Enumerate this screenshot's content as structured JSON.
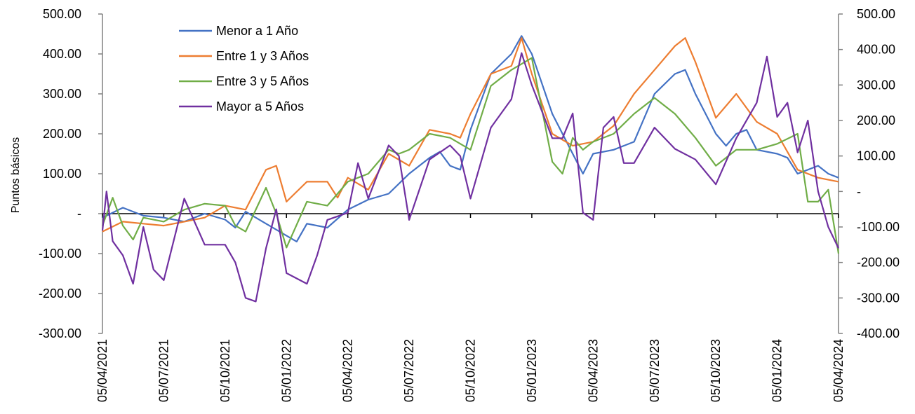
{
  "chart_data": {
    "type": "line",
    "ylabel": "Puntos básicos",
    "ylim_left": [
      -300,
      500
    ],
    "ylim_right": [
      -400,
      500
    ],
    "y_ticks_left": [
      -300,
      -200,
      -100,
      0,
      100,
      200,
      300,
      400,
      500
    ],
    "y_tick_labels_left": [
      "-300.00",
      "-200.00",
      "-100.00",
      "-",
      "100.00",
      "200.00",
      "300.00",
      "400.00",
      "500.00"
    ],
    "y_ticks_right": [
      -400,
      -300,
      -200,
      -100,
      0,
      100,
      200,
      300,
      400,
      500
    ],
    "y_tick_labels_right": [
      "-400.00",
      "-300.00",
      "-200.00",
      "-100.00",
      "-",
      "100.00",
      "200.00",
      "300.00",
      "400.00",
      "500.00"
    ],
    "x_tick_labels": [
      "05/04/2021",
      "05/07/2021",
      "05/10/2021",
      "05/01/2022",
      "05/04/2022",
      "05/07/2022",
      "05/10/2022",
      "05/01/2023",
      "05/04/2023",
      "05/07/2023",
      "05/10/2023",
      "05/01/2024",
      "05/04/2024"
    ],
    "x_range_months": [
      0,
      36
    ],
    "legend_position": "top-left",
    "grid": false,
    "series": [
      {
        "name": "Menor a 1 Año",
        "color": "#4472C4",
        "axis": "left",
        "points": [
          [
            0,
            -10
          ],
          [
            1,
            15
          ],
          [
            2,
            -5
          ],
          [
            3,
            -10
          ],
          [
            4,
            -20
          ],
          [
            5,
            0
          ],
          [
            6,
            -15
          ],
          [
            6.5,
            -35
          ],
          [
            7,
            5
          ],
          [
            8,
            -25
          ],
          [
            9,
            -55
          ],
          [
            9.5,
            -70
          ],
          [
            10,
            -25
          ],
          [
            11,
            -35
          ],
          [
            12,
            10
          ],
          [
            13,
            35
          ],
          [
            14,
            50
          ],
          [
            15,
            100
          ],
          [
            16,
            140
          ],
          [
            16.5,
            155
          ],
          [
            17,
            120
          ],
          [
            17.5,
            110
          ],
          [
            18,
            210
          ],
          [
            19,
            350
          ],
          [
            20,
            400
          ],
          [
            20.5,
            445
          ],
          [
            21,
            400
          ],
          [
            22,
            250
          ],
          [
            23,
            150
          ],
          [
            23.5,
            100
          ],
          [
            24,
            150
          ],
          [
            25,
            160
          ],
          [
            26,
            180
          ],
          [
            27,
            300
          ],
          [
            28,
            350
          ],
          [
            28.5,
            360
          ],
          [
            29,
            300
          ],
          [
            30,
            200
          ],
          [
            30.5,
            170
          ],
          [
            31,
            200
          ],
          [
            31.5,
            210
          ],
          [
            32,
            160
          ],
          [
            33,
            150
          ],
          [
            33.5,
            140
          ],
          [
            34,
            100
          ],
          [
            35,
            120
          ],
          [
            35.5,
            100
          ],
          [
            36,
            90
          ]
        ]
      },
      {
        "name": "Entre 1 y 3 Años",
        "color": "#ED7D31",
        "axis": "left",
        "points": [
          [
            0,
            -45
          ],
          [
            1,
            -20
          ],
          [
            2,
            -25
          ],
          [
            3,
            -30
          ],
          [
            4,
            -20
          ],
          [
            5,
            -10
          ],
          [
            6,
            20
          ],
          [
            7,
            10
          ],
          [
            8,
            110
          ],
          [
            8.5,
            120
          ],
          [
            9,
            30
          ],
          [
            10,
            80
          ],
          [
            11,
            80
          ],
          [
            11.5,
            40
          ],
          [
            12,
            90
          ],
          [
            13,
            60
          ],
          [
            14,
            150
          ],
          [
            15,
            120
          ],
          [
            16,
            210
          ],
          [
            17,
            200
          ],
          [
            17.5,
            190
          ],
          [
            18,
            250
          ],
          [
            19,
            350
          ],
          [
            20,
            370
          ],
          [
            20.5,
            440
          ],
          [
            21,
            350
          ],
          [
            22,
            200
          ],
          [
            23,
            170
          ],
          [
            24,
            180
          ],
          [
            25,
            220
          ],
          [
            26,
            300
          ],
          [
            27,
            360
          ],
          [
            28,
            420
          ],
          [
            28.5,
            440
          ],
          [
            29,
            380
          ],
          [
            30,
            240
          ],
          [
            31,
            300
          ],
          [
            32,
            230
          ],
          [
            33,
            200
          ],
          [
            34,
            110
          ],
          [
            35,
            90
          ],
          [
            36,
            80
          ]
        ]
      },
      {
        "name": "Entre 3 y 5 Años",
        "color": "#70AD47",
        "axis": "left",
        "points": [
          [
            0,
            -30
          ],
          [
            0.5,
            40
          ],
          [
            1,
            -30
          ],
          [
            1.5,
            -65
          ],
          [
            2,
            -10
          ],
          [
            3,
            -20
          ],
          [
            4,
            10
          ],
          [
            5,
            25
          ],
          [
            6,
            20
          ],
          [
            6.5,
            -30
          ],
          [
            7,
            -45
          ],
          [
            8,
            65
          ],
          [
            8.5,
            0
          ],
          [
            9,
            -85
          ],
          [
            10,
            30
          ],
          [
            11,
            20
          ],
          [
            12,
            80
          ],
          [
            13,
            100
          ],
          [
            14,
            160
          ],
          [
            14.5,
            150
          ],
          [
            15,
            160
          ],
          [
            16,
            200
          ],
          [
            17,
            190
          ],
          [
            18,
            160
          ],
          [
            19,
            320
          ],
          [
            20,
            360
          ],
          [
            21,
            390
          ],
          [
            22,
            130
          ],
          [
            22.5,
            100
          ],
          [
            23,
            190
          ],
          [
            23.5,
            160
          ],
          [
            24,
            180
          ],
          [
            25,
            200
          ],
          [
            26,
            250
          ],
          [
            27,
            290
          ],
          [
            28,
            250
          ],
          [
            29,
            190
          ],
          [
            30,
            120
          ],
          [
            31,
            160
          ],
          [
            32,
            160
          ],
          [
            33,
            175
          ],
          [
            34,
            200
          ],
          [
            34.5,
            30
          ],
          [
            35,
            30
          ],
          [
            35.5,
            60
          ],
          [
            36,
            -100
          ]
        ]
      },
      {
        "name": "Mayor a 5 Años",
        "color": "#7030A0",
        "axis": "right",
        "points": [
          [
            0,
            -110
          ],
          [
            0.2,
            0
          ],
          [
            0.5,
            -140
          ],
          [
            1,
            -180
          ],
          [
            1.5,
            -260
          ],
          [
            2,
            -100
          ],
          [
            2.5,
            -220
          ],
          [
            3,
            -250
          ],
          [
            4,
            -20
          ],
          [
            5,
            -150
          ],
          [
            6,
            -150
          ],
          [
            6.5,
            -200
          ],
          [
            7,
            -300
          ],
          [
            7.5,
            -310
          ],
          [
            8,
            -160
          ],
          [
            8.5,
            -50
          ],
          [
            9,
            -230
          ],
          [
            10,
            -260
          ],
          [
            10.5,
            -180
          ],
          [
            11,
            -80
          ],
          [
            12,
            -60
          ],
          [
            12.5,
            80
          ],
          [
            13,
            -20
          ],
          [
            14,
            130
          ],
          [
            14.5,
            100
          ],
          [
            15,
            -80
          ],
          [
            16,
            90
          ],
          [
            17,
            130
          ],
          [
            17.5,
            100
          ],
          [
            18,
            -20
          ],
          [
            19,
            180
          ],
          [
            20,
            260
          ],
          [
            20.5,
            390
          ],
          [
            21,
            300
          ],
          [
            22,
            150
          ],
          [
            22.5,
            150
          ],
          [
            23,
            220
          ],
          [
            23.5,
            -60
          ],
          [
            24,
            -80
          ],
          [
            24.5,
            180
          ],
          [
            25,
            210
          ],
          [
            25.5,
            80
          ],
          [
            26,
            80
          ],
          [
            27,
            180
          ],
          [
            28,
            120
          ],
          [
            29,
            90
          ],
          [
            30,
            20
          ],
          [
            31,
            150
          ],
          [
            32,
            250
          ],
          [
            32.5,
            380
          ],
          [
            33,
            210
          ],
          [
            33.5,
            250
          ],
          [
            34,
            110
          ],
          [
            34.5,
            200
          ],
          [
            35,
            0
          ],
          [
            35.5,
            -100
          ],
          [
            36,
            -160
          ]
        ]
      }
    ]
  }
}
